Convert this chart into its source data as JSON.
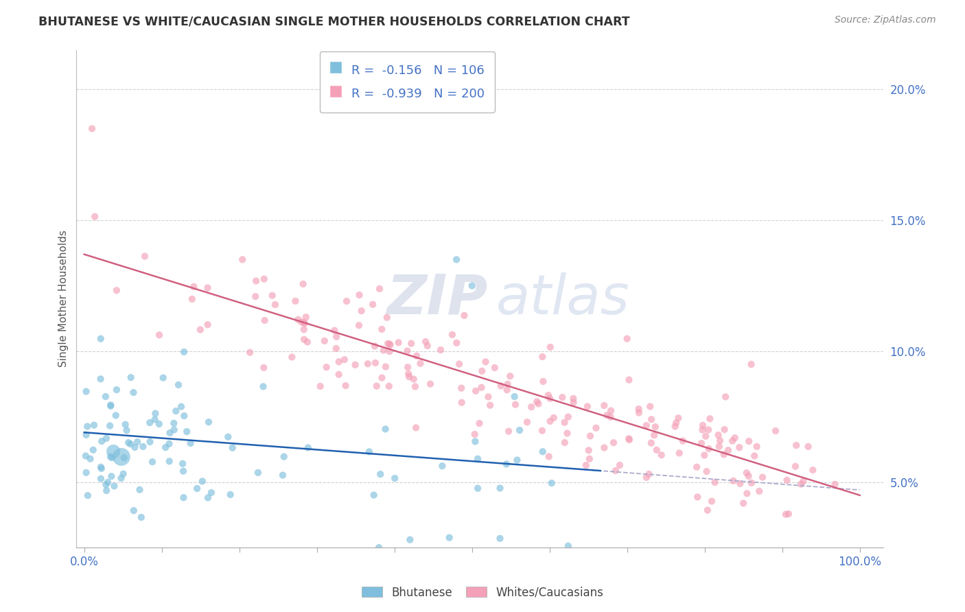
{
  "title": "BHUTANESE VS WHITE/CAUCASIAN SINGLE MOTHER HOUSEHOLDS CORRELATION CHART",
  "source": "Source: ZipAtlas.com",
  "ylabel": "Single Mother Households",
  "y_ticks_vals": [
    0.05,
    0.1,
    0.15,
    0.2
  ],
  "y_ticks_labels": [
    "5.0%",
    "10.0%",
    "15.0%",
    "20.0%"
  ],
  "x_ticks_vals": [
    0.0,
    0.1,
    0.2,
    0.3,
    0.4,
    0.5,
    0.6,
    0.7,
    0.8,
    0.9,
    1.0
  ],
  "x_ticks_labels": [
    "0.0%",
    "",
    "",
    "",
    "",
    "",
    "",
    "",
    "",
    "",
    "100.0%"
  ],
  "x_range": [
    -0.01,
    1.03
  ],
  "y_range": [
    0.025,
    0.215
  ],
  "bhutanese_color": "#7fbfdd",
  "caucasian_color": "#f4a0b8",
  "bhutanese_line_color": "#2060b0",
  "caucasian_line_color": "#d06080",
  "dashed_line_color": "#aaaacc",
  "bhutanese_R": -0.156,
  "bhutanese_N": 106,
  "caucasian_R": -0.939,
  "caucasian_N": 200,
  "watermark_zip": "ZIP",
  "watermark_atlas": "atlas",
  "legend_label_1": "Bhutanese",
  "legend_label_2": "Whites/Caucasians",
  "background_color": "#ffffff",
  "grid_color": "#cccccc",
  "title_color": "#333333",
  "source_color": "#888888",
  "tick_color": "#4472c4",
  "legend_text_color": "#4472c4",
  "scatter_alpha": 0.65,
  "scatter_size": 55,
  "scatter_size_large": 350,
  "line_width": 1.8
}
